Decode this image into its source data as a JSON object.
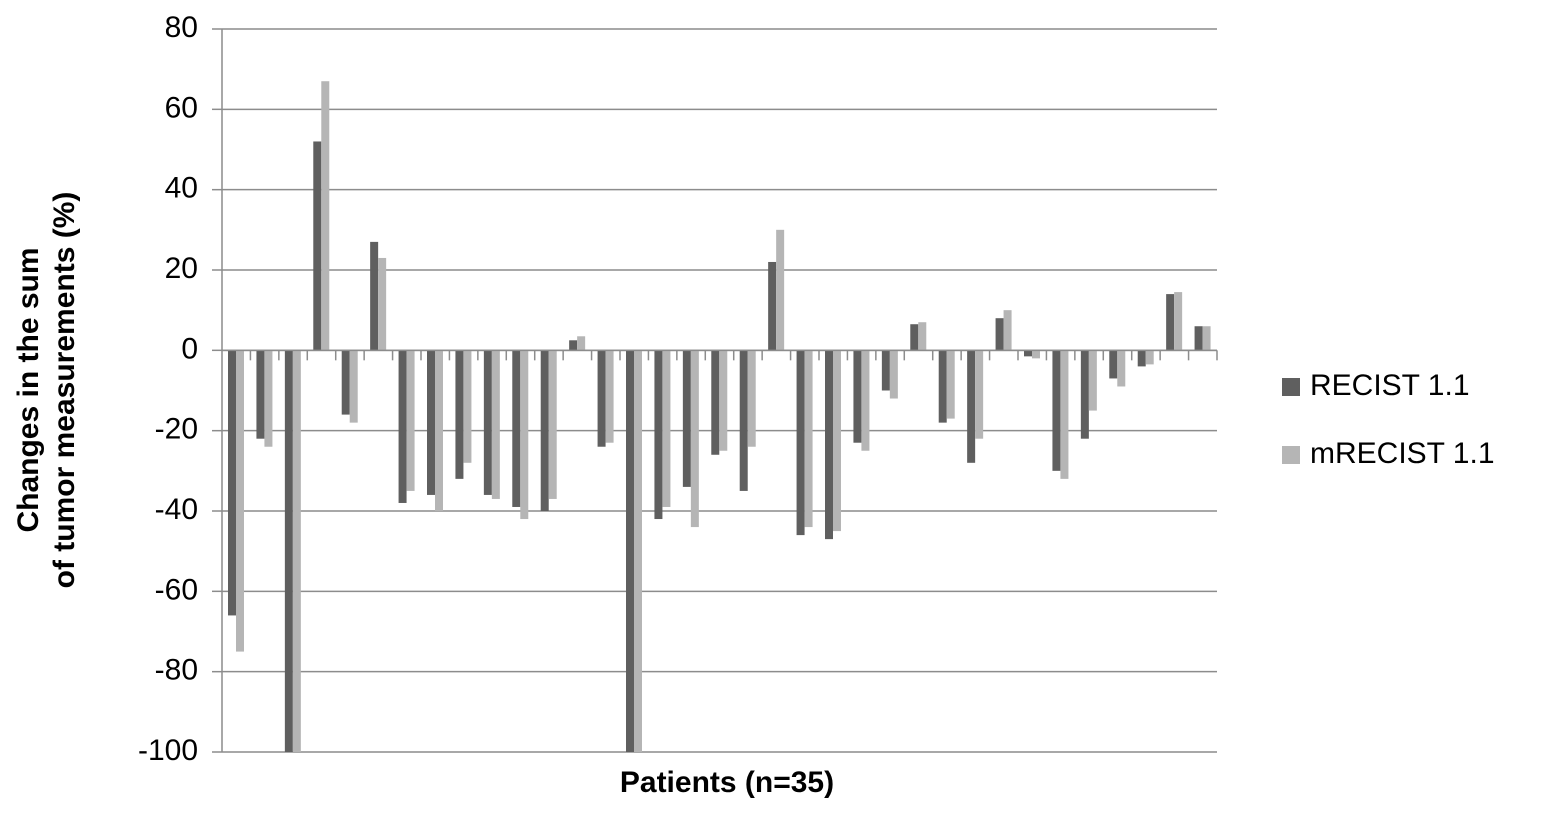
{
  "chart_data": {
    "type": "bar",
    "xlabel": "Patients (n=35)",
    "ylabel": [
      "Changes in the sum",
      "of tumor measurements (%)"
    ],
    "categories": [
      null,
      null,
      null,
      null,
      null,
      null,
      null,
      null,
      null,
      null,
      null,
      null,
      null,
      null,
      null,
      null,
      null,
      null,
      null,
      null,
      null,
      null,
      null,
      null,
      null,
      null,
      null,
      null,
      null,
      null,
      null,
      null,
      null,
      null,
      null
    ],
    "series": [
      {
        "name": "RECIST 1.1",
        "color": "#5f5f5f",
        "values": [
          -66,
          -22,
          -100,
          52,
          -16,
          27,
          -38,
          -36,
          -32,
          -36,
          -39,
          -40,
          2.5,
          -24,
          -100,
          -42,
          -34,
          -26,
          -35,
          22,
          -46,
          -47,
          -23,
          -10,
          6.5,
          -18,
          -28,
          8,
          -1.5,
          -30,
          -22,
          -7,
          -4,
          14,
          6
        ]
      },
      {
        "name": "mRECIST 1.1",
        "color": "#b5b5b5",
        "values": [
          -75,
          -24,
          -100,
          67,
          -18,
          23,
          -35,
          -40,
          -28,
          -37,
          -42,
          -37,
          3.5,
          -23,
          -100,
          -39,
          -44,
          -25,
          -24,
          30,
          -44,
          -45,
          -25,
          -12,
          7,
          -17,
          -22,
          10,
          -2,
          -32,
          -15,
          -9,
          -3.5,
          14.5,
          6
        ]
      }
    ],
    "ylim": [
      -100,
      80
    ],
    "yticks": [
      -100,
      -80,
      -60,
      -40,
      -20,
      0,
      20,
      40,
      60,
      80
    ],
    "grid": true,
    "legend": "right"
  }
}
